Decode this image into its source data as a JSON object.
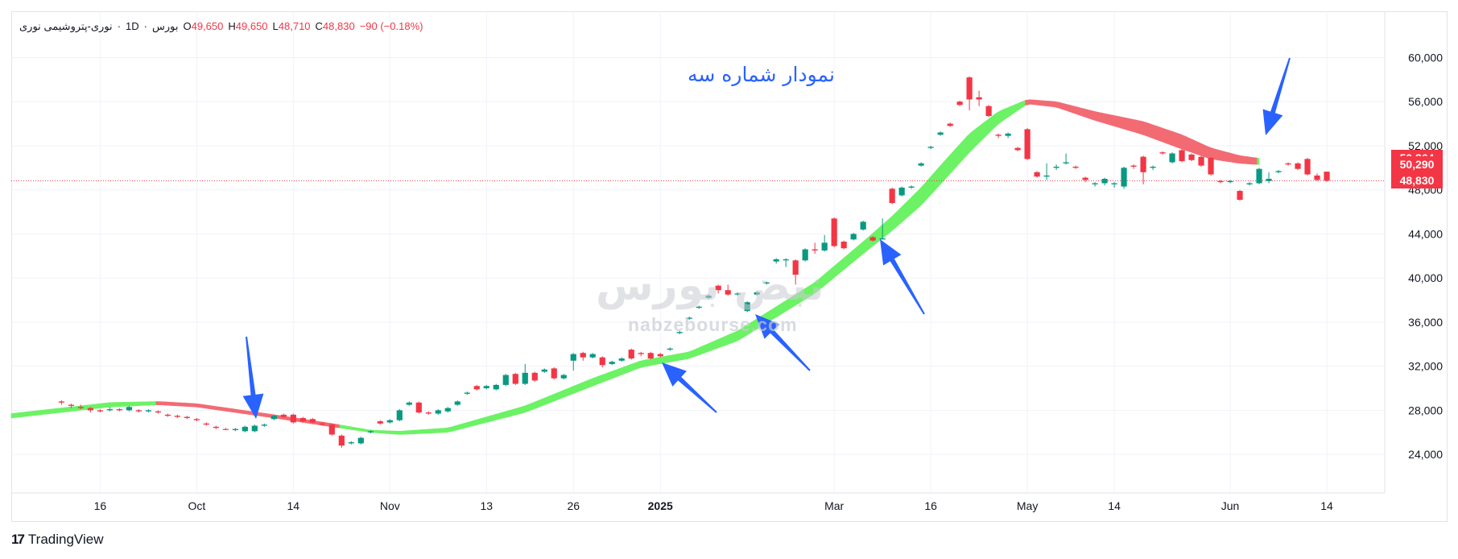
{
  "legend": {
    "symbol": "نوری-پتروشیمی نوری",
    "interval": "1D",
    "exchange": "بورس",
    "open_label": "O",
    "open": "49,650",
    "high_label": "H",
    "high": "49,650",
    "low_label": "L",
    "low": "48,710",
    "close_label": "C",
    "close": "48,830",
    "change": "−90 (−0.18%)"
  },
  "annotation": "نمودار شماره سه",
  "watermark": {
    "logo_text": "نبض بورس",
    "site": "nabzebourse.com"
  },
  "brand": {
    "logo": "17",
    "name": "TradingView"
  },
  "price_badges": [
    {
      "value": "50,864",
      "price": 50864
    },
    {
      "value": "50,290",
      "price": 50290
    },
    {
      "value": "48,830",
      "price": 48830
    }
  ],
  "colors": {
    "up": "#089981",
    "down": "#f23645",
    "cloud_up": "#6cf265",
    "cloud_down": "#f26b73",
    "arrow": "#2962ff"
  },
  "chart_data": {
    "type": "candlestick",
    "title": "",
    "y_ticks": [
      "24,000",
      "28,000",
      "32,000",
      "36,000",
      "40,000",
      "44,000",
      "48,000",
      "52,000",
      "56,000",
      "60,000"
    ],
    "y_tick_values": [
      24000,
      28000,
      32000,
      36000,
      40000,
      44000,
      48000,
      52000,
      56000,
      60000
    ],
    "ylim": [
      20500,
      64200
    ],
    "x_ticks": [
      {
        "label": "16",
        "i": 4
      },
      {
        "label": "Oct",
        "i": 14
      },
      {
        "label": "14",
        "i": 24
      },
      {
        "label": "Nov",
        "i": 34
      },
      {
        "label": "13",
        "i": 44
      },
      {
        "label": "26",
        "i": 53
      },
      {
        "label": "2025",
        "i": 62
      },
      {
        "label": "Mar",
        "i": 80
      },
      {
        "label": "16",
        "i": 90
      },
      {
        "label": "May",
        "i": 100
      },
      {
        "label": "14",
        "i": 109
      },
      {
        "label": "Jun",
        "i": 121
      },
      {
        "label": "14",
        "i": 131
      }
    ],
    "x_range": [
      -5.2,
      137
    ],
    "current_price": 48830,
    "candles": [
      [
        28800,
        28700,
        28900,
        28500
      ],
      [
        28500,
        28400,
        28600,
        28200
      ],
      [
        28300,
        28200,
        28500,
        28100
      ],
      [
        28200,
        28000,
        28300,
        27800
      ],
      [
        28000,
        27900,
        28100,
        27800
      ],
      [
        28000,
        28100,
        28300,
        27900
      ],
      [
        28100,
        28000,
        28200,
        27900
      ],
      [
        28000,
        28300,
        28400,
        27900
      ],
      [
        28000,
        27900,
        28100,
        27800
      ],
      [
        27900,
        28000,
        28100,
        27800
      ],
      [
        27900,
        27800,
        28000,
        27700
      ],
      [
        27600,
        27500,
        27700,
        27400
      ],
      [
        27500,
        27400,
        27600,
        27300
      ],
      [
        27400,
        27300,
        27500,
        27200
      ],
      [
        27200,
        27100,
        27300,
        27000
      ],
      [
        26800,
        26700,
        26900,
        26600
      ],
      [
        26500,
        26400,
        26600,
        26300
      ],
      [
        26300,
        26250,
        26400,
        26200
      ],
      [
        26200,
        26300,
        26400,
        26100
      ],
      [
        26100,
        26500,
        26600,
        26000
      ],
      [
        26100,
        26600,
        26700,
        26000
      ],
      [
        26600,
        26700,
        26800,
        26500
      ],
      [
        27200,
        27500,
        27600,
        27100
      ],
      [
        27600,
        27400,
        27700,
        27300
      ],
      [
        27600,
        26900,
        27700,
        26800
      ],
      [
        27300,
        27000,
        27400,
        26900
      ],
      [
        27200,
        26900,
        27300,
        26800
      ],
      [
        26800,
        26700,
        26900,
        26600
      ],
      [
        26700,
        25800,
        26800,
        25700
      ],
      [
        25700,
        24800,
        25800,
        24600
      ],
      [
        25000,
        25100,
        25200,
        24900
      ],
      [
        25000,
        25500,
        25600,
        24900
      ],
      [
        26000,
        26100,
        26200,
        25900
      ],
      [
        27000,
        26800,
        27100,
        26700
      ],
      [
        26900,
        27100,
        27200,
        26800
      ],
      [
        27100,
        28000,
        28100,
        27000
      ],
      [
        28500,
        28700,
        28800,
        28400
      ],
      [
        28700,
        27800,
        28800,
        27700
      ],
      [
        27800,
        27700,
        27900,
        27600
      ],
      [
        27700,
        28000,
        28100,
        27600
      ],
      [
        27900,
        28200,
        28300,
        27800
      ],
      [
        28500,
        28800,
        28900,
        28400
      ],
      [
        29500,
        29600,
        29700,
        29400
      ],
      [
        30200,
        29900,
        30300,
        29800
      ],
      [
        30000,
        30200,
        30300,
        29900
      ],
      [
        29900,
        30300,
        30400,
        29800
      ],
      [
        30300,
        31200,
        31300,
        30200
      ],
      [
        31300,
        30400,
        31400,
        30300
      ],
      [
        30400,
        31400,
        32200,
        30300
      ],
      [
        31400,
        30700,
        31500,
        30600
      ],
      [
        31500,
        31700,
        31800,
        31400
      ],
      [
        31800,
        30900,
        31900,
        30800
      ],
      [
        30900,
        31200,
        31300,
        30800
      ],
      [
        32500,
        33100,
        33200,
        31600
      ],
      [
        33200,
        32800,
        33300,
        32500
      ],
      [
        32800,
        33100,
        33200,
        32700
      ],
      [
        32800,
        32100,
        32900,
        31900
      ],
      [
        32200,
        32400,
        32500,
        32100
      ],
      [
        32500,
        32700,
        32800,
        32400
      ],
      [
        33500,
        32700,
        33600,
        32600
      ],
      [
        33200,
        33100,
        33300,
        32900
      ],
      [
        33200,
        32700,
        33300,
        32600
      ],
      [
        33100,
        32900,
        33200,
        32800
      ],
      [
        33500,
        33600,
        33700,
        33400
      ],
      [
        35000,
        35100,
        35200,
        34900
      ],
      [
        36300,
        36400,
        36500,
        36200
      ],
      [
        37300,
        37400,
        37500,
        37200
      ],
      [
        38200,
        38400,
        38500,
        38100
      ],
      [
        39300,
        38900,
        39400,
        38600
      ],
      [
        38900,
        38500,
        39400,
        38400
      ],
      [
        38500,
        38600,
        38700,
        38400
      ],
      [
        37000,
        37800,
        37900,
        36900
      ],
      [
        38500,
        38700,
        38800,
        38400
      ],
      [
        39500,
        39600,
        39700,
        39400
      ],
      [
        41500,
        41700,
        41800,
        41300
      ],
      [
        41600,
        41700,
        41800,
        41000
      ],
      [
        41600,
        40300,
        41700,
        39400
      ],
      [
        41600,
        42600,
        42700,
        41500
      ],
      [
        42600,
        42500,
        43200,
        42200
      ],
      [
        42500,
        43200,
        43900,
        42400
      ],
      [
        45400,
        42900,
        45500,
        42800
      ],
      [
        43300,
        42700,
        43400,
        42600
      ],
      [
        43500,
        44000,
        44100,
        43400
      ],
      [
        44400,
        45100,
        45200,
        44300
      ],
      [
        43700,
        43400,
        43800,
        43300
      ],
      [
        43500,
        43600,
        45400,
        43500
      ],
      [
        48100,
        46800,
        48200,
        46700
      ],
      [
        47500,
        48200,
        48300,
        47400
      ],
      [
        48200,
        48300,
        48400,
        48100
      ],
      [
        50200,
        50400,
        50500,
        50100
      ],
      [
        51800,
        51900,
        52000,
        51700
      ],
      [
        53000,
        53200,
        53300,
        52900
      ],
      [
        54000,
        53800,
        54100,
        53700
      ],
      [
        56000,
        55700,
        56100,
        55600
      ],
      [
        58200,
        56200,
        58300,
        55200
      ],
      [
        56400,
        56200,
        57000,
        55600
      ],
      [
        55600,
        54700,
        55700,
        54600
      ],
      [
        53000,
        52900,
        53100,
        52700
      ],
      [
        52900,
        53100,
        53200,
        52700
      ],
      [
        51800,
        51600,
        51900,
        51500
      ],
      [
        53500,
        50800,
        53600,
        50700
      ],
      [
        49600,
        49200,
        49700,
        49100
      ],
      [
        49200,
        49300,
        50400,
        48900
      ],
      [
        50000,
        50100,
        50300,
        49800
      ],
      [
        50400,
        50500,
        51300,
        50300
      ],
      [
        50100,
        50000,
        50200,
        49900
      ],
      [
        49100,
        48900,
        49200,
        48700
      ],
      [
        48500,
        48600,
        48700,
        48300
      ],
      [
        48600,
        49000,
        49100,
        48400
      ],
      [
        48500,
        48600,
        48700,
        48200
      ],
      [
        48300,
        50000,
        50100,
        48100
      ],
      [
        50200,
        50100,
        50300,
        49900
      ],
      [
        51000,
        49600,
        51100,
        48500
      ],
      [
        50000,
        50100,
        50200,
        49800
      ],
      [
        51400,
        51300,
        51500,
        51200
      ],
      [
        50500,
        51300,
        51400,
        50400
      ],
      [
        51600,
        50600,
        51700,
        50500
      ],
      [
        51200,
        50700,
        51300,
        50600
      ],
      [
        51000,
        50200,
        51100,
        50100
      ],
      [
        50900,
        49400,
        51000,
        49300
      ],
      [
        48800,
        48700,
        48900,
        48600
      ],
      [
        48700,
        48800,
        48900,
        48600
      ],
      [
        47900,
        47100,
        48000,
        47000
      ],
      [
        48500,
        48600,
        48700,
        48400
      ],
      [
        48600,
        49900,
        50000,
        48500
      ],
      [
        48800,
        49000,
        49600,
        48600
      ],
      [
        49600,
        49700,
        49800,
        49500
      ],
      [
        50400,
        50300,
        50500,
        50200
      ],
      [
        50400,
        49900,
        50500,
        49800
      ],
      [
        50800,
        49400,
        50900,
        49300
      ],
      [
        49300,
        48900,
        49500,
        48800
      ],
      [
        49650,
        48830,
        49650,
        48710
      ]
    ],
    "cloud": {
      "upper": [
        [
          -5.2,
          27700
        ],
        [
          5,
          28700
        ],
        [
          10,
          28800
        ],
        [
          14,
          28600
        ],
        [
          22,
          27600
        ],
        [
          28,
          26800
        ],
        [
          32,
          26200
        ],
        [
          35,
          26100
        ],
        [
          40,
          26400
        ],
        [
          48,
          28400
        ],
        [
          55,
          30900
        ],
        [
          60,
          32500
        ],
        [
          65,
          33300
        ],
        [
          70,
          35200
        ],
        [
          78,
          39600
        ],
        [
          83,
          43300
        ],
        [
          86,
          45600
        ],
        [
          89,
          48200
        ],
        [
          91,
          50200
        ],
        [
          94,
          53100
        ],
        [
          97,
          55100
        ],
        [
          100,
          56200
        ],
        [
          103,
          56000
        ],
        [
          107,
          55100
        ],
        [
          112,
          54200
        ],
        [
          116,
          53000
        ],
        [
          119,
          51800
        ],
        [
          122,
          51100
        ],
        [
          124,
          50864
        ]
      ],
      "lower": [
        [
          -5.2,
          27300
        ],
        [
          5,
          28300
        ],
        [
          10,
          28500
        ],
        [
          14,
          28300
        ],
        [
          22,
          27300
        ],
        [
          28,
          26500
        ],
        [
          32,
          26000
        ],
        [
          35,
          25800
        ],
        [
          40,
          26000
        ],
        [
          48,
          27800
        ],
        [
          55,
          30200
        ],
        [
          60,
          31900
        ],
        [
          65,
          32700
        ],
        [
          70,
          34300
        ],
        [
          78,
          38600
        ],
        [
          83,
          42200
        ],
        [
          86,
          44300
        ],
        [
          89,
          46600
        ],
        [
          91,
          48500
        ],
        [
          94,
          51400
        ],
        [
          97,
          54000
        ],
        [
          100,
          55800
        ],
        [
          103,
          55500
        ],
        [
          107,
          54300
        ],
        [
          112,
          53000
        ],
        [
          116,
          51700
        ],
        [
          119,
          50800
        ],
        [
          122,
          50400
        ],
        [
          124,
          50290
        ]
      ],
      "bearish_segments": [
        [
          10,
          29
        ],
        [
          100,
          124
        ]
      ]
    }
  }
}
